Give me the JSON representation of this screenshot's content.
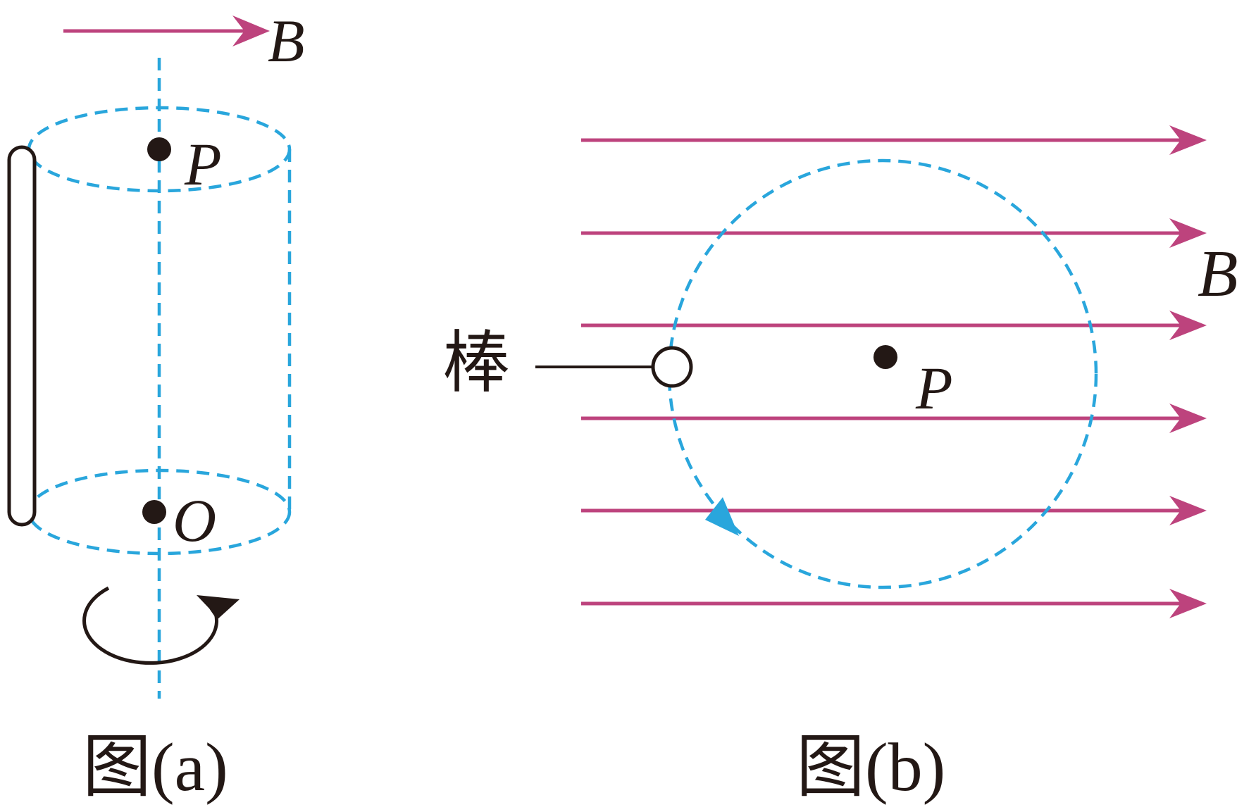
{
  "colors": {
    "field_line": "#bd437d",
    "dashed": "#29a6dc",
    "ink": "#231815",
    "background": "#ffffff"
  },
  "labels": {
    "B": "B",
    "P": "P",
    "O": "O",
    "rod": "棒",
    "caption_a": "图(a)",
    "caption_b": "图(b)"
  }
}
